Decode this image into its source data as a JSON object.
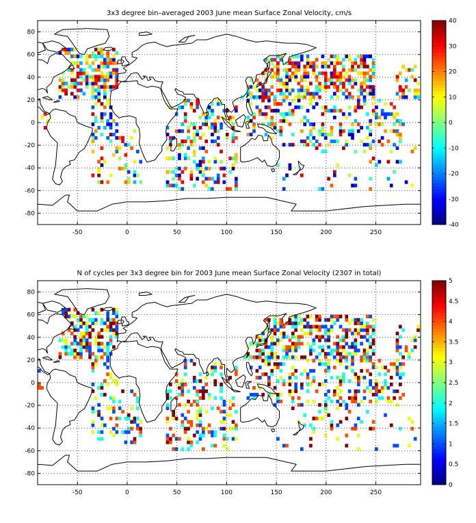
{
  "chart_data": [
    {
      "type": "heatmap",
      "title": "3x3 degree bin–averaged 2003 June mean Surface Zonal Velocity, cm/s",
      "xlim": [
        -90,
        295
      ],
      "ylim": [
        -90,
        90
      ],
      "xticks": [
        -50,
        0,
        50,
        100,
        150,
        200,
        250
      ],
      "yticks": [
        -80,
        -60,
        -40,
        -20,
        0,
        20,
        40,
        60,
        80
      ],
      "grid": true,
      "bin_size_deg": 3,
      "colorbar": {
        "colormap": "jet",
        "range": [
          -40,
          40
        ],
        "ticks": [
          -40,
          -30,
          -20,
          -10,
          0,
          10,
          20,
          30,
          40
        ],
        "position": "right"
      }
    },
    {
      "type": "heatmap",
      "title": "N of cycles per 3x3 degree bin for 2003 June mean Surface Zonal Velocity (2307 in total)",
      "xlim": [
        -90,
        295
      ],
      "ylim": [
        -90,
        90
      ],
      "xticks": [
        -50,
        0,
        50,
        100,
        150,
        200,
        250
      ],
      "yticks": [
        -80,
        -60,
        -40,
        -20,
        0,
        20,
        40,
        60,
        80
      ],
      "grid": true,
      "bin_size_deg": 3,
      "total_cycles": 2307,
      "colorbar": {
        "colormap": "jet",
        "range": [
          0,
          5
        ],
        "ticks": [
          0,
          0.5,
          1,
          1.5,
          2,
          2.5,
          3,
          3.5,
          4,
          4.5,
          5
        ],
        "position": "right"
      }
    }
  ]
}
